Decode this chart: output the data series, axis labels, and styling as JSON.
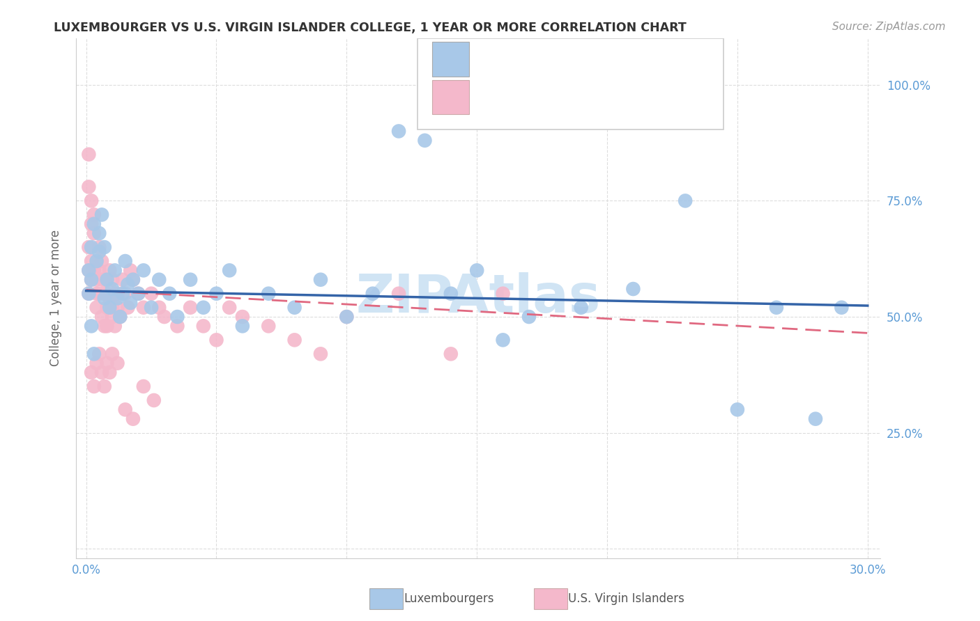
{
  "title": "LUXEMBOURGER VS U.S. VIRGIN ISLANDER COLLEGE, 1 YEAR OR MORE CORRELATION CHART",
  "source": "Source: ZipAtlas.com",
  "ylabel": "College, 1 year or more",
  "xlim": [
    0.0,
    0.3
  ],
  "ylim": [
    0.0,
    1.05
  ],
  "xtick_positions": [
    0.0,
    0.05,
    0.1,
    0.15,
    0.2,
    0.25,
    0.3
  ],
  "xticklabels": [
    "0.0%",
    "",
    "",
    "",
    "",
    "",
    "30.0%"
  ],
  "ytick_positions": [
    0.0,
    0.25,
    0.5,
    0.75,
    1.0
  ],
  "yticklabels": [
    "",
    "25.0%",
    "50.0%",
    "75.0%",
    "100.0%"
  ],
  "blue_dot_color": "#a8c8e8",
  "pink_dot_color": "#f4b8cb",
  "blue_line_color": "#3464a8",
  "pink_line_color": "#e06880",
  "tick_label_color": "#5b9bd5",
  "ylabel_color": "#666666",
  "title_color": "#333333",
  "source_color": "#999999",
  "grid_color": "#dddddd",
  "watermark_color": "#d0e4f4",
  "blue_line_y0": 0.556,
  "blue_line_y1": 0.524,
  "pink_line_y0": 0.558,
  "pink_line_y1": 0.465,
  "blue_scatter_x": [
    0.001,
    0.001,
    0.002,
    0.002,
    0.003,
    0.004,
    0.005,
    0.006,
    0.007,
    0.008,
    0.009,
    0.01,
    0.011,
    0.012,
    0.013,
    0.014,
    0.015,
    0.016,
    0.017,
    0.018,
    0.02,
    0.022,
    0.025,
    0.028,
    0.032,
    0.035,
    0.04,
    0.045,
    0.05,
    0.055,
    0.06,
    0.07,
    0.08,
    0.09,
    0.1,
    0.11,
    0.12,
    0.13,
    0.14,
    0.15,
    0.16,
    0.17,
    0.19,
    0.21,
    0.23,
    0.25,
    0.265,
    0.28,
    0.29,
    0.002,
    0.003,
    0.005,
    0.007
  ],
  "blue_scatter_y": [
    0.6,
    0.55,
    0.65,
    0.58,
    0.7,
    0.62,
    0.68,
    0.72,
    0.65,
    0.58,
    0.52,
    0.56,
    0.6,
    0.54,
    0.5,
    0.55,
    0.62,
    0.57,
    0.53,
    0.58,
    0.55,
    0.6,
    0.52,
    0.58,
    0.55,
    0.5,
    0.58,
    0.52,
    0.55,
    0.6,
    0.48,
    0.55,
    0.52,
    0.58,
    0.5,
    0.55,
    0.9,
    0.88,
    0.55,
    0.6,
    0.45,
    0.5,
    0.52,
    0.56,
    0.75,
    0.3,
    0.52,
    0.28,
    0.52,
    0.48,
    0.42,
    0.64,
    0.54
  ],
  "pink_scatter_x": [
    0.001,
    0.001,
    0.001,
    0.001,
    0.001,
    0.002,
    0.002,
    0.002,
    0.002,
    0.003,
    0.003,
    0.003,
    0.004,
    0.004,
    0.004,
    0.005,
    0.005,
    0.005,
    0.006,
    0.006,
    0.006,
    0.007,
    0.007,
    0.007,
    0.008,
    0.008,
    0.008,
    0.009,
    0.009,
    0.01,
    0.01,
    0.01,
    0.011,
    0.011,
    0.012,
    0.012,
    0.013,
    0.014,
    0.015,
    0.016,
    0.017,
    0.018,
    0.02,
    0.022,
    0.025,
    0.028,
    0.03,
    0.035,
    0.04,
    0.045,
    0.05,
    0.055,
    0.06,
    0.07,
    0.08,
    0.09,
    0.1,
    0.12,
    0.14,
    0.16,
    0.002,
    0.003,
    0.004,
    0.005,
    0.006,
    0.007,
    0.008,
    0.009,
    0.01,
    0.012,
    0.015,
    0.018,
    0.022,
    0.026
  ],
  "pink_scatter_y": [
    0.85,
    0.78,
    0.65,
    0.6,
    0.55,
    0.75,
    0.7,
    0.62,
    0.58,
    0.68,
    0.72,
    0.6,
    0.58,
    0.55,
    0.52,
    0.65,
    0.6,
    0.55,
    0.62,
    0.58,
    0.5,
    0.58,
    0.55,
    0.48,
    0.55,
    0.52,
    0.48,
    0.6,
    0.54,
    0.58,
    0.52,
    0.5,
    0.55,
    0.48,
    0.55,
    0.52,
    0.5,
    0.58,
    0.55,
    0.52,
    0.6,
    0.58,
    0.55,
    0.52,
    0.55,
    0.52,
    0.5,
    0.48,
    0.52,
    0.48,
    0.45,
    0.52,
    0.5,
    0.48,
    0.45,
    0.42,
    0.5,
    0.55,
    0.42,
    0.55,
    0.38,
    0.35,
    0.4,
    0.42,
    0.38,
    0.35,
    0.4,
    0.38,
    0.42,
    0.4,
    0.3,
    0.28,
    0.35,
    0.32
  ]
}
